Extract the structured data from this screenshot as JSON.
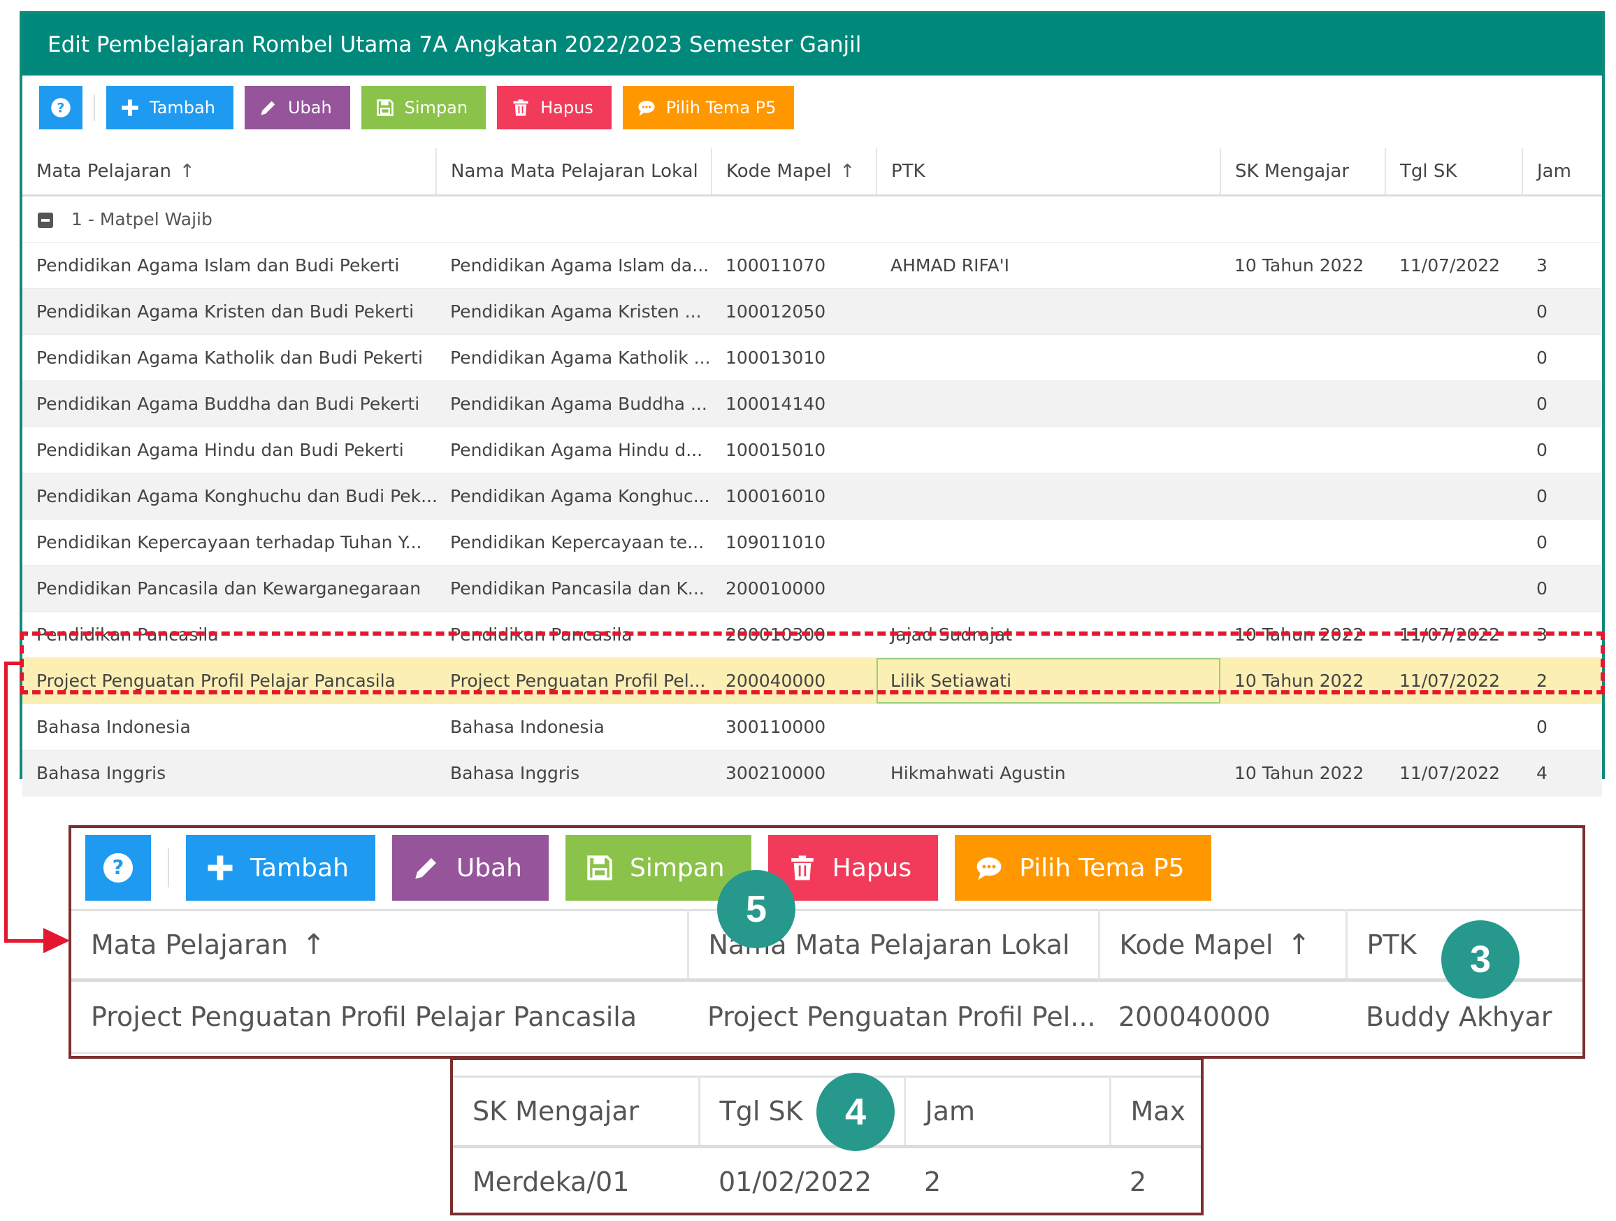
{
  "window": {
    "title": "Edit Pembelajaran Rombel Utama 7A Angkatan 2022/2023 Semester Ganjil"
  },
  "toolbar": {
    "help_icon": "question-circle-icon",
    "buttons": [
      {
        "label": "Tambah",
        "icon": "plus-icon",
        "color": "#1e9bf0"
      },
      {
        "label": "Ubah",
        "icon": "pencil-icon",
        "color": "#96559b"
      },
      {
        "label": "Simpan",
        "icon": "floppy-icon",
        "color": "#8bc34a"
      },
      {
        "label": "Hapus",
        "icon": "trash-icon",
        "color": "#f23a5a"
      },
      {
        "label": "Pilih Tema P5",
        "icon": "chat-icon",
        "color": "#ff9800"
      }
    ]
  },
  "table": {
    "columns": [
      "Mata Pelajaran",
      "Nama Mata Pelajaran Lokal",
      "Kode Mapel",
      "PTK",
      "SK Mengajar",
      "Tgl SK",
      "Jam"
    ],
    "group": "1 - Matpel Wajib",
    "rows": [
      [
        "Pendidikan Agama Islam dan Budi Pekerti",
        "Pendidikan Agama Islam da...",
        "100011070",
        "AHMAD RIFA'I",
        "10 Tahun 2022",
        "11/07/2022",
        "3"
      ],
      [
        "Pendidikan Agama Kristen dan Budi Pekerti",
        "Pendidikan Agama Kristen ...",
        "100012050",
        "",
        "",
        "",
        "0"
      ],
      [
        "Pendidikan Agama Katholik dan Budi Pekerti",
        "Pendidikan Agama Katholik ...",
        "100013010",
        "",
        "",
        "",
        "0"
      ],
      [
        "Pendidikan Agama Buddha dan Budi Pekerti",
        "Pendidikan Agama Buddha ...",
        "100014140",
        "",
        "",
        "",
        "0"
      ],
      [
        "Pendidikan Agama Hindu dan Budi Pekerti",
        "Pendidikan Agama Hindu d...",
        "100015010",
        "",
        "",
        "",
        "0"
      ],
      [
        "Pendidikan Agama Konghuchu dan Budi Pek...",
        "Pendidikan Agama Konghuc...",
        "100016010",
        "",
        "",
        "",
        "0"
      ],
      [
        "Pendidikan Kepercayaan terhadap Tuhan Y...",
        "Pendidikan Kepercayaan te...",
        "109011010",
        "",
        "",
        "",
        "0"
      ],
      [
        "Pendidikan Pancasila dan Kewarganegaraan",
        "Pendidikan Pancasila dan K...",
        "200010000",
        "",
        "",
        "",
        "0"
      ],
      [
        "Pendidikan Pancasila",
        "Pendidikan Pancasila",
        "200010300",
        "Jajad Sudrajat",
        "10 Tahun 2022",
        "11/07/2022",
        "3"
      ],
      [
        "Project Penguatan Profil Pelajar Pancasila",
        "Project Penguatan Profil Pel...",
        "200040000",
        "Lilik Setiawati",
        "10 Tahun 2022",
        "11/07/2022",
        "2"
      ],
      [
        "Bahasa Indonesia",
        "Bahasa Indonesia",
        "300110000",
        "",
        "",
        "",
        "0"
      ],
      [
        "Bahasa Inggris",
        "Bahasa Inggris",
        "300210000",
        "Hikmahwati Agustin",
        "10 Tahun 2022",
        "11/07/2022",
        "4"
      ]
    ]
  },
  "zoom1": {
    "columns": [
      "Mata Pelajaran",
      "Nama Mata Pelajaran Lokal",
      "Kode Mapel",
      "PTK"
    ],
    "row": [
      "Project Penguatan Profil Pelajar Pancasila",
      "Project Penguatan Profil Pel...",
      "200040000",
      "Buddy Akhyar"
    ]
  },
  "zoom2": {
    "columns": [
      "SK Mengajar",
      "Tgl SK",
      "Jam",
      "Max"
    ],
    "row": [
      "Merdeka/01",
      "01/02/2022",
      "2",
      "2"
    ]
  },
  "badges": [
    "5",
    "3",
    "4"
  ],
  "colors": {
    "title_bar": "#00897b",
    "highlight": "#e3172d",
    "selected_row": "#fcefb4",
    "badge": "#26998c"
  }
}
